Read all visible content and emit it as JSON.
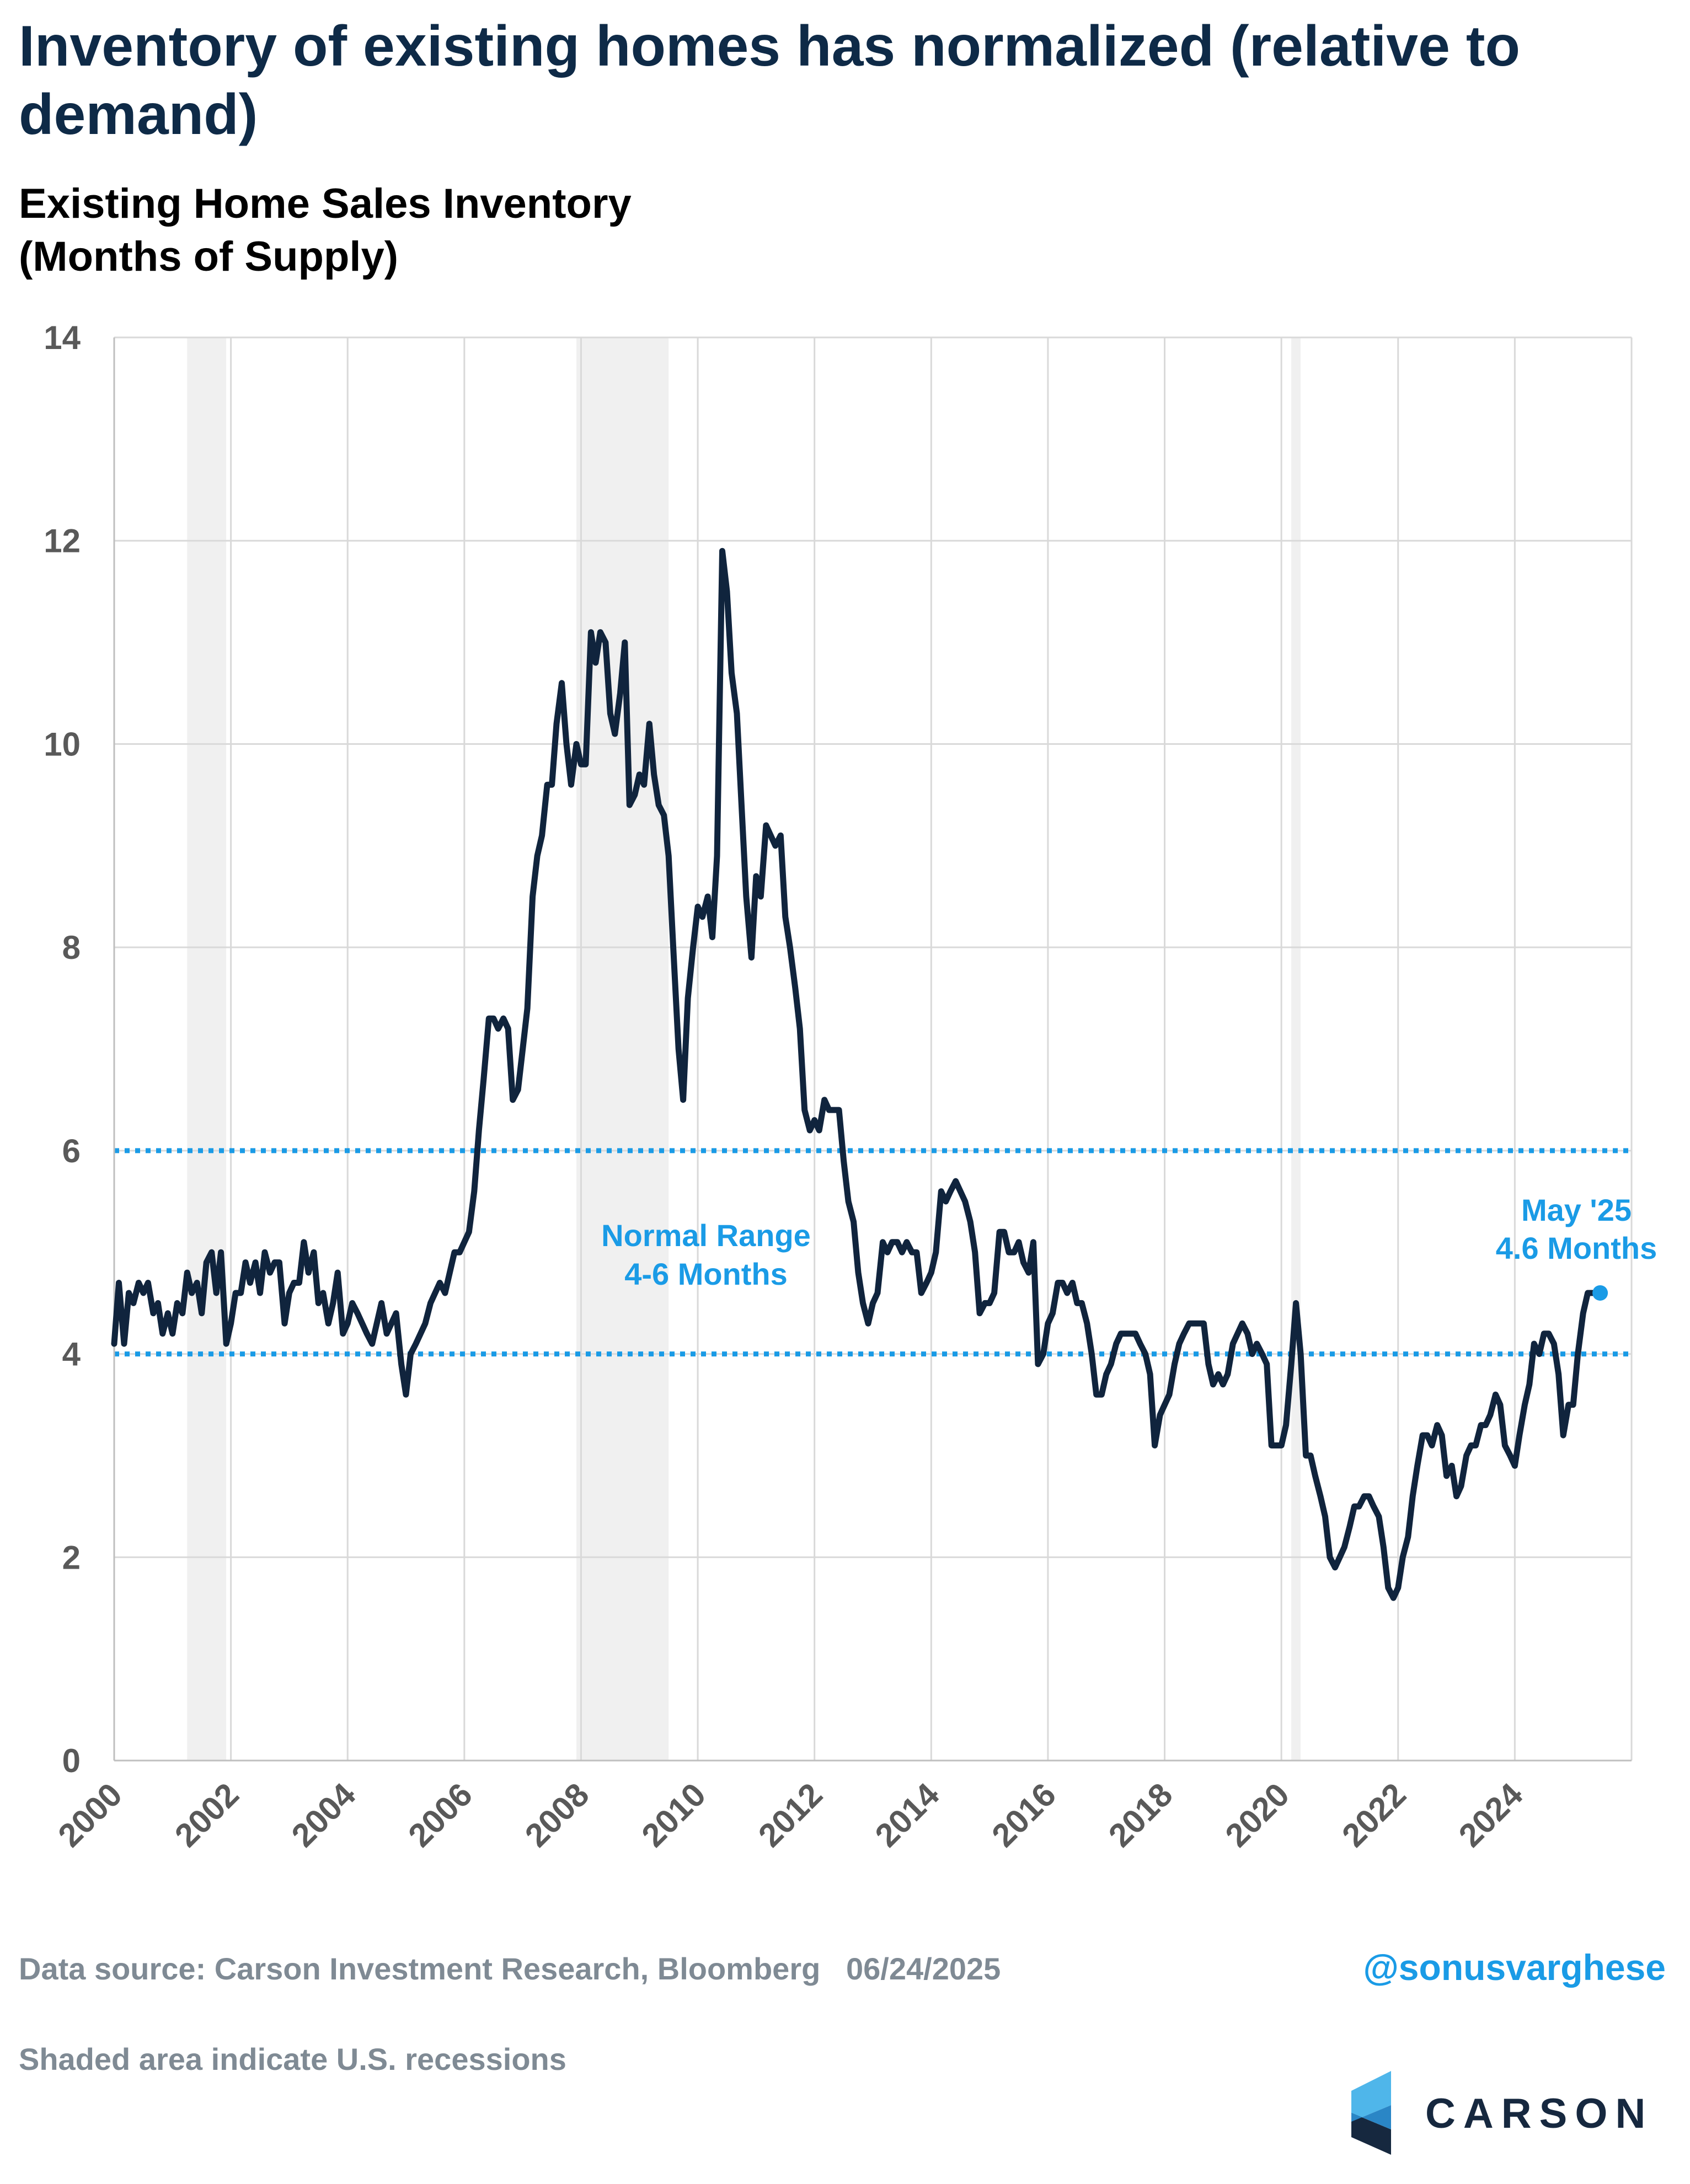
{
  "title": "Inventory of existing homes has normalized (relative to demand)",
  "subtitle_line1": "Existing Home Sales Inventory",
  "subtitle_line2": "(Months of Supply)",
  "footer": {
    "source": "Data source: Carson Investment Research, Bloomberg   06/24/2025",
    "note": "Shaded area indicate U.S. recessions",
    "handle": "@sonusvarghese",
    "brand": "CARSON"
  },
  "colors": {
    "line": "#10243d",
    "range": "#1a9be6",
    "recession": "#f0f0f0",
    "grid": "#d9d9d9",
    "accent": "#1a9be6"
  },
  "chart_data": {
    "type": "line",
    "title": "Existing Home Sales Inventory (Months of Supply)",
    "xlim": [
      2000,
      2026
    ],
    "ylim": [
      0,
      14
    ],
    "x_ticks": [
      "2000",
      "2002",
      "2004",
      "2006",
      "2008",
      "2010",
      "2012",
      "2014",
      "2016",
      "2018",
      "2020",
      "2022",
      "2024"
    ],
    "y_ticks": [
      "0",
      "2",
      "4",
      "6",
      "8",
      "10",
      "12",
      "14"
    ],
    "grid": true,
    "recessions": [
      [
        2001.25,
        2001.92
      ],
      [
        2007.92,
        2009.5
      ],
      [
        2020.17,
        2020.33
      ]
    ],
    "normal_range": {
      "low": 4,
      "high": 6,
      "label_line1": "Normal Range",
      "label_line2": "4-6 Months"
    },
    "endpoint": {
      "x": 2025.33,
      "y": 4.6,
      "label_line1": "May '25",
      "label_line2": "4.6 Months"
    },
    "series": [
      {
        "x": [
          2000.0,
          2000.08,
          2000.17,
          2000.25,
          2000.33,
          2000.42,
          2000.5,
          2000.58,
          2000.67,
          2000.75,
          2000.83,
          2000.92,
          2001.0,
          2001.08,
          2001.17,
          2001.25,
          2001.33,
          2001.42,
          2001.5,
          2001.58,
          2001.67,
          2001.75,
          2001.83,
          2001.92,
          2002.0,
          2002.08,
          2002.17,
          2002.25,
          2002.33,
          2002.42,
          2002.5,
          2002.58,
          2002.67,
          2002.75,
          2002.83,
          2002.92,
          2003.0,
          2003.08,
          2003.17,
          2003.25,
          2003.33,
          2003.42,
          2003.5,
          2003.58,
          2003.67,
          2003.75,
          2003.83,
          2003.92,
          2004.0,
          2004.08,
          2004.17,
          2004.25,
          2004.33,
          2004.42,
          2004.5,
          2004.58,
          2004.67,
          2004.75,
          2004.83,
          2004.92,
          2005.0,
          2005.08,
          2005.17,
          2005.25,
          2005.33,
          2005.42,
          2005.5,
          2005.58,
          2005.67,
          2005.75,
          2005.83,
          2005.92,
          2006.0,
          2006.08,
          2006.17,
          2006.25,
          2006.33,
          2006.42,
          2006.5,
          2006.58,
          2006.67,
          2006.75,
          2006.83,
          2006.92,
          2007.0,
          2007.08,
          2007.17,
          2007.25,
          2007.33,
          2007.42,
          2007.5,
          2007.58,
          2007.67,
          2007.75,
          2007.83,
          2007.92,
          2008.0,
          2008.08,
          2008.17,
          2008.25,
          2008.33,
          2008.42,
          2008.5,
          2008.58,
          2008.67,
          2008.75,
          2008.83,
          2008.92,
          2009.0,
          2009.08,
          2009.17,
          2009.25,
          2009.33,
          2009.42,
          2009.5,
          2009.58,
          2009.67,
          2009.75,
          2009.83,
          2009.92,
          2010.0,
          2010.08,
          2010.17,
          2010.25,
          2010.33,
          2010.42,
          2010.5,
          2010.58,
          2010.67,
          2010.75,
          2010.83,
          2010.92,
          2011.0,
          2011.08,
          2011.17,
          2011.25,
          2011.33,
          2011.42,
          2011.5,
          2011.58,
          2011.67,
          2011.75,
          2011.83,
          2011.92,
          2012.0,
          2012.08,
          2012.17,
          2012.25,
          2012.33,
          2012.42,
          2012.5,
          2012.58,
          2012.67,
          2012.75,
          2012.83,
          2012.92,
          2013.0,
          2013.08,
          2013.17,
          2013.25,
          2013.33,
          2013.42,
          2013.5,
          2013.58,
          2013.67,
          2013.75,
          2013.83,
          2013.92,
          2014.0,
          2014.08,
          2014.17,
          2014.25,
          2014.33,
          2014.42,
          2014.5,
          2014.58,
          2014.67,
          2014.75,
          2014.83,
          2014.92,
          2015.0,
          2015.08,
          2015.17,
          2015.25,
          2015.33,
          2015.42,
          2015.5,
          2015.58,
          2015.67,
          2015.75,
          2015.83,
          2015.92,
          2016.0,
          2016.08,
          2016.17,
          2016.25,
          2016.33,
          2016.42,
          2016.5,
          2016.58,
          2016.67,
          2016.75,
          2016.83,
          2016.92,
          2017.0,
          2017.08,
          2017.17,
          2017.25,
          2017.33,
          2017.42,
          2017.5,
          2017.58,
          2017.67,
          2017.75,
          2017.83,
          2017.92,
          2018.0,
          2018.08,
          2018.17,
          2018.25,
          2018.33,
          2018.42,
          2018.5,
          2018.58,
          2018.67,
          2018.75,
          2018.83,
          2018.92,
          2019.0,
          2019.08,
          2019.17,
          2019.25,
          2019.33,
          2019.42,
          2019.5,
          2019.58,
          2019.67,
          2019.75,
          2019.83,
          2019.92,
          2020.0,
          2020.08,
          2020.17,
          2020.25,
          2020.33,
          2020.42,
          2020.5,
          2020.58,
          2020.67,
          2020.75,
          2020.83,
          2020.92,
          2021.0,
          2021.08,
          2021.17,
          2021.25,
          2021.33,
          2021.42,
          2021.5,
          2021.58,
          2021.67,
          2021.75,
          2021.83,
          2021.92,
          2022.0,
          2022.08,
          2022.17,
          2022.25,
          2022.33,
          2022.42,
          2022.5,
          2022.58,
          2022.67,
          2022.75,
          2022.83,
          2022.92,
          2023.0,
          2023.08,
          2023.17,
          2023.25,
          2023.33,
          2023.42,
          2023.5,
          2023.58,
          2023.67,
          2023.75,
          2023.83,
          2023.92,
          2024.0,
          2024.08,
          2024.17,
          2024.25,
          2024.33,
          2024.42,
          2024.5,
          2024.58,
          2024.67,
          2024.75,
          2024.83,
          2024.92,
          2025.0,
          2025.08,
          2025.17,
          2025.25,
          2025.33
        ],
        "y": [
          4.1,
          4.7,
          4.1,
          4.6,
          4.5,
          4.7,
          4.6,
          4.7,
          4.4,
          4.5,
          4.2,
          4.4,
          4.2,
          4.5,
          4.4,
          4.8,
          4.6,
          4.7,
          4.4,
          4.9,
          5.0,
          4.6,
          5.0,
          4.1,
          4.3,
          4.6,
          4.6,
          4.9,
          4.7,
          4.9,
          4.6,
          5.0,
          4.8,
          4.9,
          4.9,
          4.3,
          4.6,
          4.7,
          4.7,
          5.1,
          4.8,
          5.0,
          4.5,
          4.6,
          4.3,
          4.5,
          4.8,
          4.2,
          4.3,
          4.5,
          4.4,
          4.3,
          4.2,
          4.1,
          4.3,
          4.5,
          4.2,
          4.3,
          4.4,
          3.9,
          3.6,
          4.0,
          4.1,
          4.2,
          4.3,
          4.5,
          4.6,
          4.7,
          4.6,
          4.8,
          5.0,
          5.0,
          5.1,
          5.2,
          5.6,
          6.2,
          6.7,
          7.3,
          7.3,
          7.2,
          7.3,
          7.2,
          6.5,
          6.6,
          7.0,
          7.4,
          8.5,
          8.9,
          9.1,
          9.6,
          9.6,
          10.2,
          10.6,
          10.0,
          9.6,
          10.0,
          9.8,
          9.8,
          11.1,
          10.8,
          11.1,
          11.0,
          10.3,
          10.1,
          10.5,
          11.0,
          9.4,
          9.5,
          9.7,
          9.6,
          10.2,
          9.7,
          9.4,
          9.3,
          8.9,
          8.0,
          7.0,
          6.5,
          7.5,
          8.0,
          8.4,
          8.3,
          8.5,
          8.1,
          8.9,
          11.9,
          11.5,
          10.7,
          10.3,
          9.4,
          8.5,
          7.9,
          8.7,
          8.5,
          9.2,
          9.1,
          9.0,
          9.1,
          8.3,
          8.0,
          7.6,
          7.2,
          6.4,
          6.2,
          6.3,
          6.2,
          6.5,
          6.4,
          6.4,
          6.4,
          5.9,
          5.5,
          5.3,
          4.8,
          4.5,
          4.3,
          4.5,
          4.6,
          5.1,
          5.0,
          5.1,
          5.1,
          5.0,
          5.1,
          5.0,
          5.0,
          4.6,
          4.7,
          4.8,
          5.0,
          5.6,
          5.5,
          5.6,
          5.7,
          5.6,
          5.5,
          5.3,
          5.0,
          4.4,
          4.5,
          4.5,
          4.6,
          5.2,
          5.2,
          5.0,
          5.0,
          5.1,
          4.9,
          4.8,
          5.1,
          3.9,
          4.0,
          4.3,
          4.4,
          4.7,
          4.7,
          4.6,
          4.7,
          4.5,
          4.5,
          4.3,
          4.0,
          3.6,
          3.6,
          3.8,
          3.9,
          4.1,
          4.2,
          4.2,
          4.2,
          4.2,
          4.1,
          4.0,
          3.8,
          3.1,
          3.4,
          3.5,
          3.6,
          3.9,
          4.1,
          4.2,
          4.3,
          4.3,
          4.3,
          4.3,
          3.9,
          3.7,
          3.8,
          3.7,
          3.8,
          4.1,
          4.2,
          4.3,
          4.2,
          4.0,
          4.1,
          4.0,
          3.9,
          3.1,
          3.1,
          3.1,
          3.3,
          3.9,
          4.5,
          4.0,
          3.0,
          3.0,
          2.8,
          2.6,
          2.4,
          2.0,
          1.9,
          2.0,
          2.1,
          2.3,
          2.5,
          2.5,
          2.6,
          2.6,
          2.5,
          2.4,
          2.1,
          1.7,
          1.6,
          1.7,
          2.0,
          2.2,
          2.6,
          2.9,
          3.2,
          3.2,
          3.1,
          3.3,
          3.2,
          2.8,
          2.9,
          2.6,
          2.7,
          3.0,
          3.1,
          3.1,
          3.3,
          3.3,
          3.4,
          3.6,
          3.5,
          3.1,
          3.0,
          2.9,
          3.2,
          3.5,
          3.7,
          4.1,
          4.0,
          4.2,
          4.2,
          4.1,
          3.8,
          3.2,
          3.5,
          3.5,
          4.0,
          4.4,
          4.6,
          4.6
        ]
      }
    ]
  }
}
